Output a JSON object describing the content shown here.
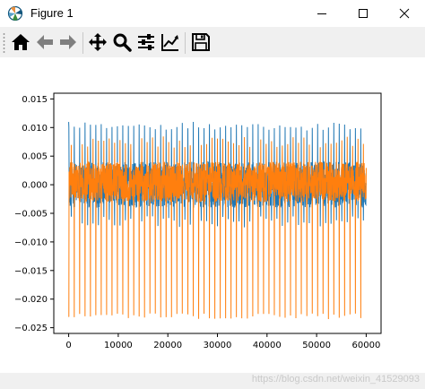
{
  "window": {
    "title": "Figure 1",
    "icons": {
      "app": "matplotlib-icon",
      "minimize": "minimize-icon",
      "maximize": "maximize-icon",
      "close": "close-icon"
    }
  },
  "toolbar": {
    "tools": [
      {
        "name": "home-icon"
      },
      {
        "name": "back-arrow-icon"
      },
      {
        "name": "forward-arrow-icon"
      },
      {
        "name": "pan-move-icon"
      },
      {
        "name": "zoom-magnifier-icon"
      },
      {
        "name": "subplots-config-icon"
      },
      {
        "name": "edit-axes-icon"
      },
      {
        "name": "save-floppy-icon"
      }
    ]
  },
  "chart_data": {
    "type": "line",
    "title": "",
    "xlabel": "",
    "ylabel": "",
    "xlim": [
      -3000,
      63000
    ],
    "ylim": [
      -0.026,
      0.016
    ],
    "xticks": [
      0,
      10000,
      20000,
      30000,
      40000,
      50000,
      60000
    ],
    "xtick_labels": [
      "0",
      "10000",
      "20000",
      "30000",
      "40000",
      "50000",
      "60000"
    ],
    "yticks": [
      0.015,
      0.01,
      0.005,
      0.0,
      -0.005,
      -0.01,
      -0.015,
      -0.02,
      -0.025
    ],
    "ytick_labels": [
      "0.015",
      "0.010",
      "0.005",
      "0.000",
      "−0.005",
      "−0.010",
      "−0.015",
      "−0.020",
      "−0.025"
    ],
    "grid": false,
    "legend": "none",
    "series": [
      {
        "color": "#1f77b4",
        "x_range": [
          0,
          60000
        ],
        "peak_count": 55,
        "band": [
          -0.004,
          0.004
        ],
        "peaks_max": 0.011,
        "troughs_min": -0.0075
      },
      {
        "color": "#ff7f0e",
        "x_range": [
          0,
          60000
        ],
        "peak_count": 55,
        "band": [
          -0.003,
          0.004
        ],
        "peaks_max": 0.0085,
        "troughs_min": -0.0235
      }
    ]
  },
  "statusbar": {
    "text": "https://blog.csdn.net/weixin_41529093"
  }
}
